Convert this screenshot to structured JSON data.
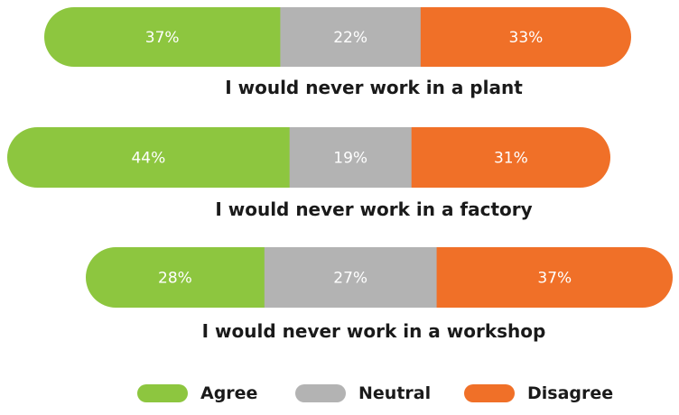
{
  "chart_data": {
    "type": "bar",
    "orientation": "horizontal-stacked",
    "categories": [
      "I would never work in a plant",
      "I would never work in a factory",
      "I would never work in a workshop"
    ],
    "series": [
      {
        "name": "Agree",
        "values": [
          37,
          44,
          28
        ],
        "labels": [
          "37%",
          "44%",
          "28%"
        ],
        "color": "#8dc63f"
      },
      {
        "name": "Neutral",
        "values": [
          22,
          19,
          27
        ],
        "labels": [
          "22%",
          "19%",
          "27%"
        ],
        "color": "#b3b3b3"
      },
      {
        "name": "Disagree",
        "values": [
          33,
          31,
          37
        ],
        "labels": [
          "33%",
          "31%",
          "37%"
        ],
        "color": "#f07028"
      }
    ],
    "unit": "%",
    "legend_position": "bottom",
    "grid": false
  },
  "legend": {
    "items": [
      {
        "label": "Agree",
        "color": "#8dc63f"
      },
      {
        "label": "Neutral",
        "color": "#b3b3b3"
      },
      {
        "label": "Disagree",
        "color": "#f07028"
      }
    ]
  }
}
